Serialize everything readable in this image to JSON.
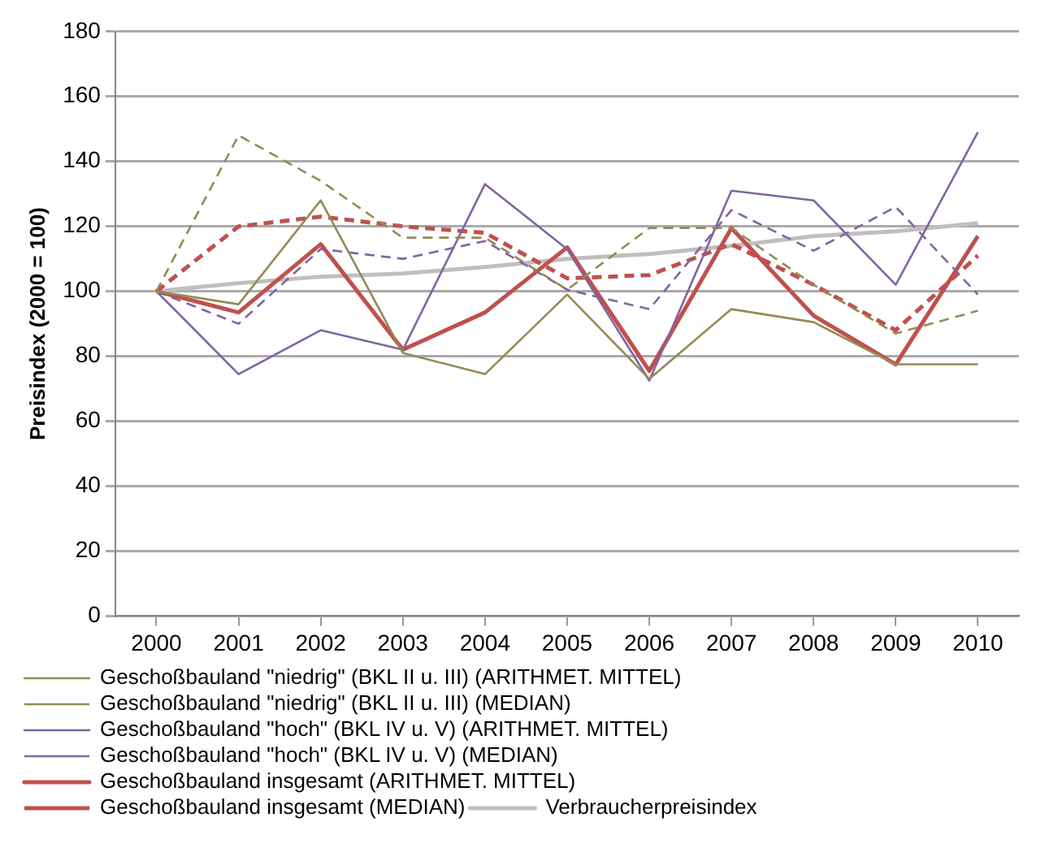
{
  "chart_data": {
    "type": "line",
    "ylabel": "Preisindex (2000 = 100)",
    "categories": [
      "2000",
      "2001",
      "2002",
      "2003",
      "2004",
      "2005",
      "2006",
      "2007",
      "2008",
      "2009",
      "2010"
    ],
    "ylim": [
      0,
      180
    ],
    "yticks": [
      0,
      20,
      40,
      60,
      80,
      100,
      120,
      140,
      160,
      180
    ],
    "grid": "y",
    "legend": "bottom",
    "marker": "none",
    "series": [
      {
        "name": "Geschoßbauland \"niedrig\" (BKL II u. III) (ARITHMET. MITTEL)",
        "color": "#948a54",
        "line_style": "solid",
        "values": [
          100,
          96,
          128,
          81,
          74.5,
          99,
          73,
          94.5,
          90.5,
          77.5,
          77.5
        ]
      },
      {
        "name": "Geschoßbauland \"niedrig\" (BKL II u. III) (MEDIAN)",
        "color": "#948a54",
        "line_style": "dashed",
        "values": [
          100,
          148,
          134,
          116.5,
          116.5,
          100.5,
          119.5,
          119.5,
          102,
          87,
          94
        ]
      },
      {
        "name": "Geschoßbauland \"hoch\" (BKL IV u. V) (ARITHMET. MITTEL)",
        "color": "#8064a2",
        "line_style": "solid",
        "values": [
          100,
          74.5,
          88,
          82,
          133,
          113,
          72.5,
          131,
          128,
          102,
          149
        ]
      },
      {
        "name": "Geschoßbauland \"hoch\" (BKL IV u. V) (MEDIAN)",
        "color": "#8064a2",
        "line_style": "dashed",
        "values": [
          100,
          90,
          113,
          110,
          115.5,
          100.5,
          94.5,
          125,
          112.5,
          126,
          99
        ]
      },
      {
        "name": "Geschoßbauland insgesamt (ARITHMET. MITTEL)",
        "color": "#c0504d",
        "line_style": "solid",
        "values": [
          100,
          93.5,
          114.5,
          82,
          93.5,
          113.5,
          75.5,
          119.5,
          92.5,
          77.5,
          117
        ]
      },
      {
        "name": "Geschoßbauland insgesamt (MEDIAN)",
        "color": "#c0504d",
        "line_style": "dashed",
        "values": [
          100,
          120,
          123,
          120,
          118,
          104,
          105,
          114.5,
          102,
          88,
          111
        ]
      },
      {
        "name": "Verbraucherpreisindex",
        "color": "#bfbfbf",
        "line_style": "solid",
        "values": [
          100,
          102.5,
          104.5,
          105.5,
          107.5,
          110,
          111.5,
          114,
          117,
          118.5,
          121
        ]
      }
    ]
  }
}
